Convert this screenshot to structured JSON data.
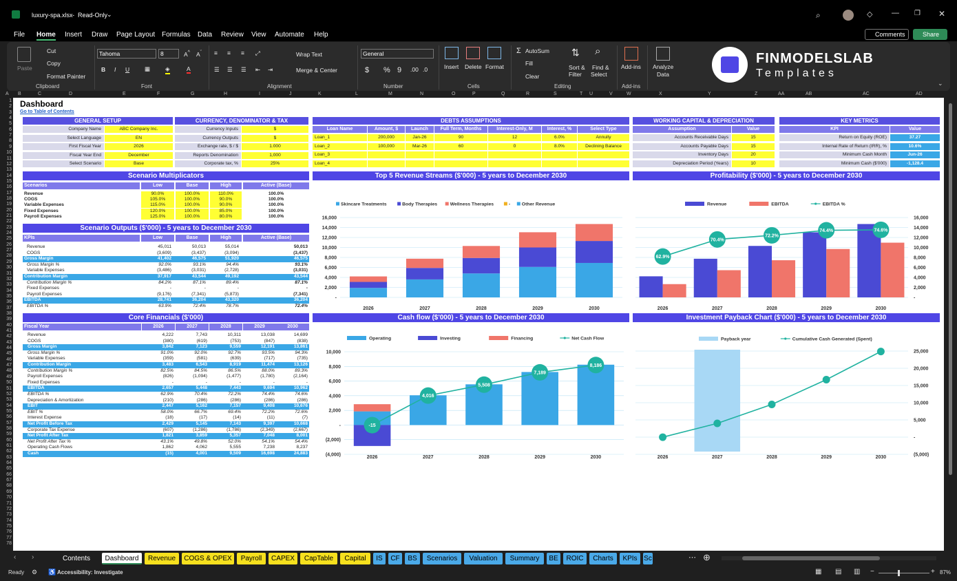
{
  "titlebar": {
    "filename": "luxury-spa.xlsx",
    "mode": "Read-Only"
  },
  "menu": [
    "File",
    "Home",
    "Insert",
    "Draw",
    "Page Layout",
    "Formulas",
    "Data",
    "Review",
    "View",
    "Automate",
    "Help"
  ],
  "actions": {
    "comments": "Comments",
    "share": "Share"
  },
  "ribbon": {
    "paste": "Paste",
    "cut": "Cut",
    "copy": "Copy",
    "format_painter": "Format Painter",
    "font": "Tahoma",
    "font_size": "8",
    "wrap": "Wrap Text",
    "merge": "Merge & Center",
    "number_format": "General",
    "insert": "Insert",
    "delete": "Delete",
    "format": "Format",
    "autosum": "AutoSum",
    "fill": "Fill",
    "clear": "Clear",
    "sort": "Sort &",
    "sort2": "Filter",
    "find": "Find &",
    "find2": "Select",
    "addins": "Add-ins",
    "analyze": "Analyze",
    "analyze2": "Data",
    "groups": [
      "Clipboard",
      "Font",
      "Alignment",
      "Number",
      "Cells",
      "Editing",
      "Add-ins"
    ]
  },
  "brand": {
    "line1": "FINMODELSLAB",
    "line2": "Templates"
  },
  "columns": [
    "A",
    "B",
    "C",
    "D",
    "E",
    "F",
    "G",
    "H",
    "I",
    "J",
    "K",
    "L",
    "M",
    "N",
    "O",
    "P",
    "Q",
    "R",
    "S",
    "T",
    "U",
    "V",
    "W",
    "X",
    "Y",
    "Z",
    "AA",
    "AB",
    "AC",
    "AD"
  ],
  "rows": [
    "1",
    "2",
    "3",
    "4",
    "5",
    "6",
    "7",
    "8",
    "9",
    "10",
    "11",
    "12",
    "13",
    "14",
    "15",
    "16",
    "17",
    "18",
    "19",
    "20",
    "21",
    "22",
    "23",
    "24",
    "25",
    "26",
    "27",
    "28",
    "29",
    "30",
    "31",
    "32",
    "33",
    "34",
    "35",
    "36",
    "37",
    "38",
    "39",
    "40",
    "41",
    "42",
    "43",
    "44",
    "45",
    "46",
    "47",
    "48",
    "49",
    "50",
    "51",
    "52",
    "53",
    "54",
    "55",
    "56",
    "57",
    "58",
    "59",
    "60",
    "61",
    "62",
    "63",
    "64",
    "65",
    "66",
    "67",
    "68",
    "69",
    "70",
    "71",
    "72",
    "73",
    "74",
    "75",
    "76",
    "77",
    "78"
  ],
  "dashboard": {
    "title": "Dashboard",
    "link": "Go to Table of Contents"
  },
  "general": {
    "title": "GENERAL SETUP",
    "rows": [
      [
        "Company Name",
        "ABC Company Inc."
      ],
      [
        "Select Language",
        "EN"
      ],
      [
        "First Fiscal Year",
        "2026"
      ],
      [
        "Fiscal Year End",
        "December"
      ],
      [
        "Select Scenario",
        "Base"
      ]
    ]
  },
  "currency": {
    "title": "CURRENCY, DENOMINATOR & TAX",
    "rows": [
      [
        "Currency Inputs",
        "$"
      ],
      [
        "Currency Outputs",
        "$"
      ],
      [
        "Exchange rate, $ / $",
        "1.000"
      ],
      [
        "Reports Denomination",
        "1,000"
      ],
      [
        "Corporate tax, %",
        "25%"
      ]
    ]
  },
  "debts": {
    "title": "DEBTS ASSUMPTIONS",
    "headers": [
      "Loan Name",
      "Amount, $",
      "Launch",
      "Full Term, Months",
      "Interest-Only, M",
      "Interest, %",
      "Select Type"
    ],
    "rows": [
      [
        "Loan_1",
        "200,000",
        "Jan-26",
        "90",
        "12",
        "6.0%",
        "Annuity"
      ],
      [
        "Loan_2",
        "100,000",
        "Mar-26",
        "60",
        "0",
        "8.0%",
        "Declining Balance"
      ],
      [
        "Loan_3",
        "",
        "",
        "",
        "",
        "",
        ""
      ],
      [
        "Loan_4",
        "",
        "",
        "",
        "",
        "",
        ""
      ]
    ]
  },
  "working": {
    "title": "WORKING CAPITAL & DEPRECIATION",
    "headers": [
      "Assumption",
      "Value"
    ],
    "rows": [
      [
        "Accounts Receivable Days",
        "15"
      ],
      [
        "Accounts Payable Days",
        "15"
      ],
      [
        "Inventory Days",
        "20"
      ],
      [
        "Depreciation Period (Years)",
        "10"
      ]
    ]
  },
  "metrics": {
    "title": "KEY METRICS",
    "headers": [
      "KPI",
      "Value"
    ],
    "rows": [
      [
        "Return on Equity (ROE)",
        "37.27"
      ],
      [
        "Internal Rate of Return (IRR), %",
        "10.6%"
      ],
      [
        "Minimum Cash Month",
        "Jun-26"
      ],
      [
        "Minimum Cash ($'000)",
        "-1,128.4"
      ]
    ]
  },
  "scen_mult": {
    "title": "Scenario Multiplicators",
    "headers": [
      "Scenarios",
      "Low",
      "Base",
      "High",
      "Active (Base)"
    ],
    "rows": [
      [
        "Revenue",
        "90.0%",
        "100.0%",
        "110.0%",
        "100.0%"
      ],
      [
        "COGS",
        "105.0%",
        "100.0%",
        "90.0%",
        "100.0%"
      ],
      [
        "Variable Expenses",
        "115.0%",
        "100.0%",
        "90.0%",
        "100.0%"
      ],
      [
        "Fixed Expenses",
        "120.0%",
        "100.0%",
        "85.0%",
        "100.0%"
      ],
      [
        "Payroll Expenses",
        "125.0%",
        "100.0%",
        "80.0%",
        "100.0%"
      ]
    ]
  },
  "scen_out": {
    "title": "Scenario Outputs ($'000) - 5 years to December 2030",
    "headers": [
      "KPIs",
      "Low",
      "Base",
      "High",
      "Active (Base)"
    ],
    "rows": [
      {
        "l": "Revenue",
        "v": [
          "45,011",
          "50,013",
          "55,014",
          "50,013"
        ],
        "s": "n"
      },
      {
        "l": "COGS",
        "v": [
          "(3,609)",
          "(3,437)",
          "(3,094)",
          "(3,437)"
        ],
        "s": "n"
      },
      {
        "l": "Gross Margin",
        "v": [
          "41,402",
          "46,575",
          "51,920",
          "46,575"
        ],
        "s": "h"
      },
      {
        "l": "Gross Margin %",
        "v": [
          "92.0%",
          "93.1%",
          "94.4%",
          "93.1%"
        ],
        "s": "i"
      },
      {
        "l": "Variable Expenses",
        "v": [
          "(3,486)",
          "(3,031)",
          "(2,728)",
          "(3,031)"
        ],
        "s": "n"
      },
      {
        "l": "Contribution Margin",
        "v": [
          "37,917",
          "43,544",
          "49,192",
          "43,544"
        ],
        "s": "h"
      },
      {
        "l": "Contribution Margin %",
        "v": [
          "84.2%",
          "87.1%",
          "89.4%",
          "87.1%"
        ],
        "s": "i"
      },
      {
        "l": "Fixed Expenses",
        "v": [
          "-",
          "-",
          "-",
          "-"
        ],
        "s": "n"
      },
      {
        "l": "Payroll Expenses",
        "v": [
          "(9,176)",
          "(7,341)",
          "(5,873)",
          "(7,341)"
        ],
        "s": "n"
      },
      {
        "l": "EBITDA",
        "v": [
          "28,741",
          "36,204",
          "43,320",
          "36,204"
        ],
        "s": "h"
      },
      {
        "l": "EBITDA %",
        "v": [
          "63.9%",
          "72.4%",
          "78.7%",
          "72.4%"
        ],
        "s": "i"
      }
    ]
  },
  "core": {
    "title": "Core Financials ($'000)",
    "headers": [
      "Fiscal Year",
      "2026",
      "2027",
      "2028",
      "2029",
      "2030"
    ],
    "rows": [
      {
        "l": "Revenue",
        "v": [
          "4,222",
          "7,743",
          "10,311",
          "13,038",
          "14,699"
        ],
        "s": "n"
      },
      {
        "l": "COGS",
        "v": [
          "(380)",
          "(619)",
          "(753)",
          "(847)",
          "(838)"
        ],
        "s": "n"
      },
      {
        "l": "Gross Margin",
        "v": [
          "3,842",
          "7,123",
          "9,559",
          "12,191",
          "13,861"
        ],
        "s": "h"
      },
      {
        "l": "Gross Margin %",
        "v": [
          "91.0%",
          "92.0%",
          "92.7%",
          "93.5%",
          "94.3%"
        ],
        "s": "i"
      },
      {
        "l": "Variable Expenses",
        "v": [
          "(359)",
          "(581)",
          "(639)",
          "(717)",
          "(735)"
        ],
        "s": "n"
      },
      {
        "l": "Contribution Margin",
        "v": [
          "3,483",
          "6,543",
          "8,919",
          "11,474",
          "13,126"
        ],
        "s": "h"
      },
      {
        "l": "Contribution Margin %",
        "v": [
          "82.5%",
          "84.5%",
          "86.5%",
          "88.0%",
          "89.3%"
        ],
        "s": "i"
      },
      {
        "l": "Payroll Expenses",
        "v": [
          "(826)",
          "(1,094)",
          "(1,477)",
          "(1,780)",
          "(2,164)"
        ],
        "s": "n"
      },
      {
        "l": "Fixed Expenses",
        "v": [
          "-",
          "-",
          "-",
          "-",
          "-"
        ],
        "s": "n"
      },
      {
        "l": "EBITDA",
        "v": [
          "2,657",
          "5,448",
          "7,443",
          "9,694",
          "10,962"
        ],
        "s": "h"
      },
      {
        "l": "EBITDA %",
        "v": [
          "62.9%",
          "70.4%",
          "72.2%",
          "74.4%",
          "74.6%"
        ],
        "s": "i"
      },
      {
        "l": "Depreciation & Amortization",
        "v": [
          "(210)",
          "(286)",
          "(286)",
          "(286)",
          "(286)"
        ],
        "s": "n"
      },
      {
        "l": "EBIT",
        "v": [
          "2,447",
          "5,162",
          "7,157",
          "9,408",
          "10,676"
        ],
        "s": "h"
      },
      {
        "l": "EBIT %",
        "v": [
          "58.0%",
          "66.7%",
          "69.4%",
          "72.2%",
          "72.6%"
        ],
        "s": "i"
      },
      {
        "l": "Interest Expense",
        "v": [
          "(18)",
          "(17)",
          "(14)",
          "(11)",
          "(7)"
        ],
        "s": "n"
      },
      {
        "l": "Net Profit Before Tax",
        "v": [
          "2,429",
          "5,145",
          "7,143",
          "9,397",
          "10,668"
        ],
        "s": "h"
      },
      {
        "l": "Corporate Tax Expense",
        "v": [
          "(607)",
          "(1,286)",
          "(1,786)",
          "(2,349)",
          "(2,667)"
        ],
        "s": "n"
      },
      {
        "l": "Net Profit After Tax",
        "v": [
          "1,821",
          "3,859",
          "5,357",
          "7,048",
          "8,001"
        ],
        "s": "h"
      },
      {
        "l": "Net Profit After Tax %",
        "v": [
          "43.1%",
          "49.8%",
          "52.0%",
          "54.1%",
          "54.4%"
        ],
        "s": "i"
      },
      {
        "l": "Operating Cash Flows",
        "v": [
          "1,862",
          "4,062",
          "5,555",
          "7,238",
          "8,237"
        ],
        "s": "n"
      },
      {
        "l": "Cash",
        "v": [
          "(15)",
          "4,001",
          "9,509",
          "16,698",
          "24,883"
        ],
        "s": "h"
      }
    ]
  },
  "chart_data": [
    {
      "type": "bar",
      "title": "Top 5 Revenue Streams ($'000) - 5 years to December 2030",
      "categories": [
        "2026",
        "2027",
        "2028",
        "2029",
        "2030"
      ],
      "ylim": [
        0,
        16000
      ],
      "yticks": [
        "16,000",
        "14,000",
        "12,000",
        "10,000",
        "8,000",
        "6,000",
        "4,000",
        "2,000",
        "-"
      ],
      "series": [
        {
          "name": "Skincare Treatments",
          "color": "#3aa7e6",
          "values": [
            1900,
            3600,
            4800,
            6100,
            6900
          ]
        },
        {
          "name": "Body Therapies",
          "color": "#4a4ad4",
          "values": [
            1200,
            2300,
            3100,
            3900,
            4400
          ]
        },
        {
          "name": "Wellness Therapies",
          "color": "#f0756a",
          "values": [
            1100,
            1850,
            2400,
            3050,
            3400
          ]
        },
        {
          "name": "-",
          "color": "#f0b020",
          "values": [
            0,
            0,
            0,
            0,
            0
          ]
        },
        {
          "name": "Other Revenue",
          "color": "#3aa7e6",
          "values": [
            0,
            0,
            0,
            0,
            0
          ]
        }
      ]
    },
    {
      "type": "bar",
      "title": "Profitability ($'000) - 5 years to December 2030",
      "categories": [
        "2026",
        "2027",
        "2028",
        "2029",
        "2030"
      ],
      "ylim": [
        0,
        16000
      ],
      "yticks": [
        "16,000",
        "14,000",
        "12,000",
        "10,000",
        "8,000",
        "6,000",
        "4,000",
        "2,000",
        "-"
      ],
      "series": [
        {
          "name": "Revenue",
          "color": "#4a4ad4",
          "values": [
            4222,
            7743,
            10311,
            13038,
            14699
          ]
        },
        {
          "name": "EBITDA",
          "color": "#f0756a",
          "values": [
            2657,
            5448,
            7443,
            9694,
            10962
          ]
        },
        {
          "name": "EBITDA %",
          "color": "#20b2a0",
          "values": [
            62.9,
            70.4,
            72.2,
            74.4,
            74.6
          ]
        }
      ],
      "line_labels": [
        "62.9%",
        "70.4%",
        "72.2%",
        "74.4%",
        "74.6%"
      ]
    },
    {
      "type": "bar",
      "title": "Cash flow ($'000) - 5 years to December 2030",
      "categories": [
        "2026",
        "2027",
        "2028",
        "2029",
        "2030"
      ],
      "ylim": [
        -4000,
        10000
      ],
      "yticks": [
        "10,000",
        "8,000",
        "6,000",
        "4,000",
        "2,000",
        "-",
        "(2,000)",
        "(4,000)"
      ],
      "series": [
        {
          "name": "Operating",
          "color": "#3aa7e6",
          "values": [
            1862,
            4062,
            5555,
            7238,
            8237
          ]
        },
        {
          "name": "Investing",
          "color": "#4a4ad4",
          "values": [
            -2860,
            0,
            0,
            0,
            0
          ]
        },
        {
          "name": "Financing",
          "color": "#f0756a",
          "values": [
            983,
            0,
            0,
            0,
            0
          ]
        },
        {
          "name": "Net Cash Flow",
          "color": "#20b2a0",
          "values": [
            -15,
            4016,
            5508,
            7189,
            8186
          ]
        }
      ],
      "line_labels": [
        "-15",
        "4,016",
        "5,508",
        "7,189",
        "8,186"
      ]
    },
    {
      "type": "line",
      "title": "Investment Payback Chart ($'000) - 5 years to December 2030",
      "categories": [
        "2026",
        "2027",
        "2028",
        "2029",
        "2030"
      ],
      "ylim": [
        -5000,
        25000
      ],
      "yticks": [
        "25,000",
        "20,000",
        "15,000",
        "10,000",
        "5,000",
        "-",
        "(5,000)"
      ],
      "series": [
        {
          "name": "Payback year",
          "color": "#a8d8f5",
          "values": [
            0,
            1,
            0,
            0,
            0
          ]
        },
        {
          "name": "Cumulative Cash Generated (Spent)",
          "color": "#20b2a0",
          "values": [
            -15,
            4001,
            9509,
            16698,
            24883
          ]
        }
      ]
    }
  ],
  "tabs": [
    {
      "n": "Contents",
      "c": "p"
    },
    {
      "n": "Dashboard",
      "c": "a"
    },
    {
      "n": "Revenue",
      "c": "y"
    },
    {
      "n": "COGS & OPEX",
      "c": "y"
    },
    {
      "n": "Payroll",
      "c": "y"
    },
    {
      "n": "CAPEX",
      "c": "y"
    },
    {
      "n": "CapTable",
      "c": "y"
    },
    {
      "n": "Capital",
      "c": "y"
    },
    {
      "n": "IS",
      "c": "b"
    },
    {
      "n": "CF",
      "c": "b"
    },
    {
      "n": "BS",
      "c": "b"
    },
    {
      "n": "Scenarios",
      "c": "b"
    },
    {
      "n": "Valuation",
      "c": "b"
    },
    {
      "n": "Summary",
      "c": "b"
    },
    {
      "n": "BE",
      "c": "b"
    },
    {
      "n": "ROIC",
      "c": "b"
    },
    {
      "n": "Charts",
      "c": "b"
    },
    {
      "n": "KPIs",
      "c": "b"
    },
    {
      "n": "Sc",
      "c": "b"
    }
  ],
  "status": {
    "ready": "Ready",
    "accessibility": "Accessibility: Investigate",
    "zoom": "87%"
  }
}
